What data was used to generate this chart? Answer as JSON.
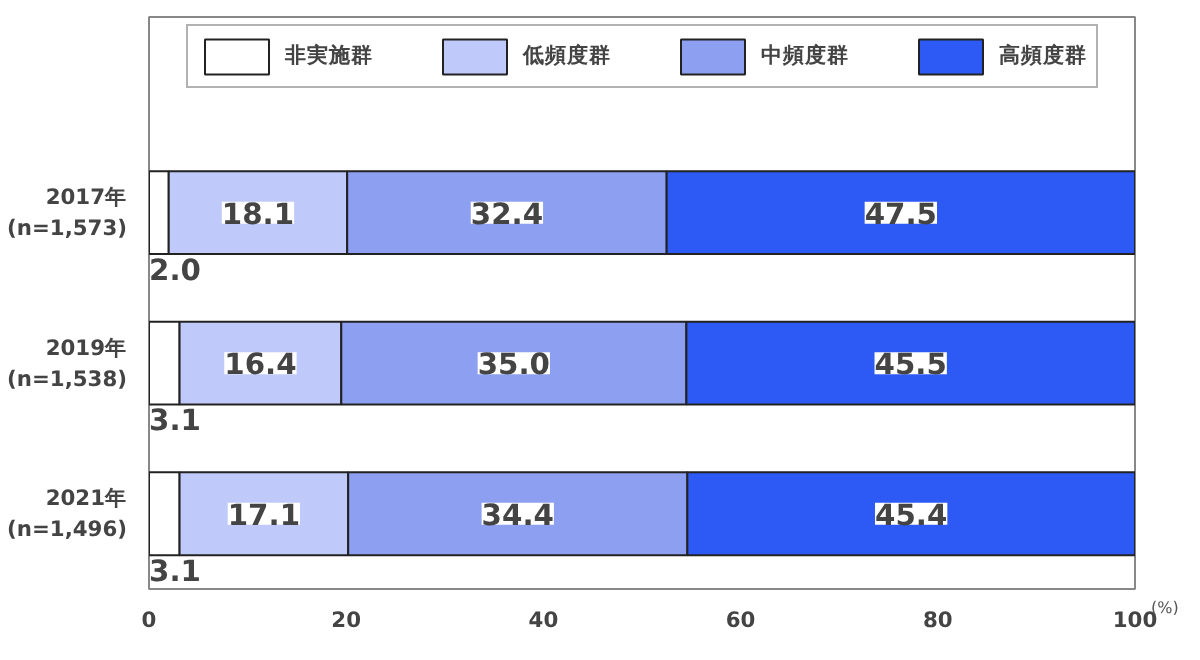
{
  "chart_data": {
    "type": "bar",
    "orientation": "horizontal",
    "stacked": true,
    "categories": [
      "2017年\n(n=1,573)",
      "2019年\n(n=1,538)",
      "2021年\n(n=1,496)"
    ],
    "series": [
      {
        "name": "非実施群",
        "color": "#ffffff",
        "values": [
          2.0,
          3.1,
          3.1
        ],
        "value_labels": [
          "2.0",
          "3.1",
          "3.1"
        ]
      },
      {
        "name": "低頻度群",
        "color": "#c0cafa",
        "values": [
          18.1,
          16.4,
          17.1
        ],
        "value_labels": [
          "18.1",
          "16.4",
          "17.1"
        ]
      },
      {
        "name": "中頻度群",
        "color": "#8c9ff0",
        "values": [
          32.4,
          35.0,
          34.4
        ],
        "value_labels": [
          "32.4",
          "35.0",
          "34.4"
        ]
      },
      {
        "name": "高頻度群",
        "color": "#2d5af5",
        "values": [
          47.5,
          45.5,
          45.4
        ],
        "value_labels": [
          "47.5",
          "45.5",
          "45.4"
        ]
      }
    ],
    "xlabel": "(%)",
    "xlim": [
      0,
      100
    ],
    "xticks": [
      0,
      20,
      40,
      60,
      80,
      100
    ],
    "legend": "top",
    "grid": false
  }
}
